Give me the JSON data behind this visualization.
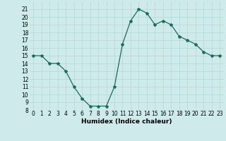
{
  "x": [
    0,
    1,
    2,
    3,
    4,
    5,
    6,
    7,
    8,
    9,
    10,
    11,
    12,
    13,
    14,
    15,
    16,
    17,
    18,
    19,
    20,
    21,
    22,
    23
  ],
  "y": [
    15,
    15,
    14,
    14,
    13,
    11,
    9.5,
    8.5,
    8.5,
    8.5,
    11,
    16.5,
    19.5,
    21,
    20.5,
    19,
    19.5,
    19,
    17.5,
    17,
    16.5,
    15.5,
    15,
    15
  ],
  "line_color": "#1a6b5a",
  "marker": "*",
  "marker_size": 3,
  "bg_color": "#ceeaea",
  "grid_color": "#b0d8d8",
  "xlabel": "Humidex (Indice chaleur)",
  "ylim": [
    8,
    22
  ],
  "xlim": [
    -0.5,
    23.5
  ],
  "yticks": [
    8,
    9,
    10,
    11,
    12,
    13,
    14,
    15,
    16,
    17,
    18,
    19,
    20,
    21
  ],
  "xticks": [
    0,
    1,
    2,
    3,
    4,
    5,
    6,
    7,
    8,
    9,
    10,
    11,
    12,
    13,
    14,
    15,
    16,
    17,
    18,
    19,
    20,
    21,
    22,
    23
  ],
  "tick_fontsize": 5.5,
  "xlabel_fontsize": 6.5
}
